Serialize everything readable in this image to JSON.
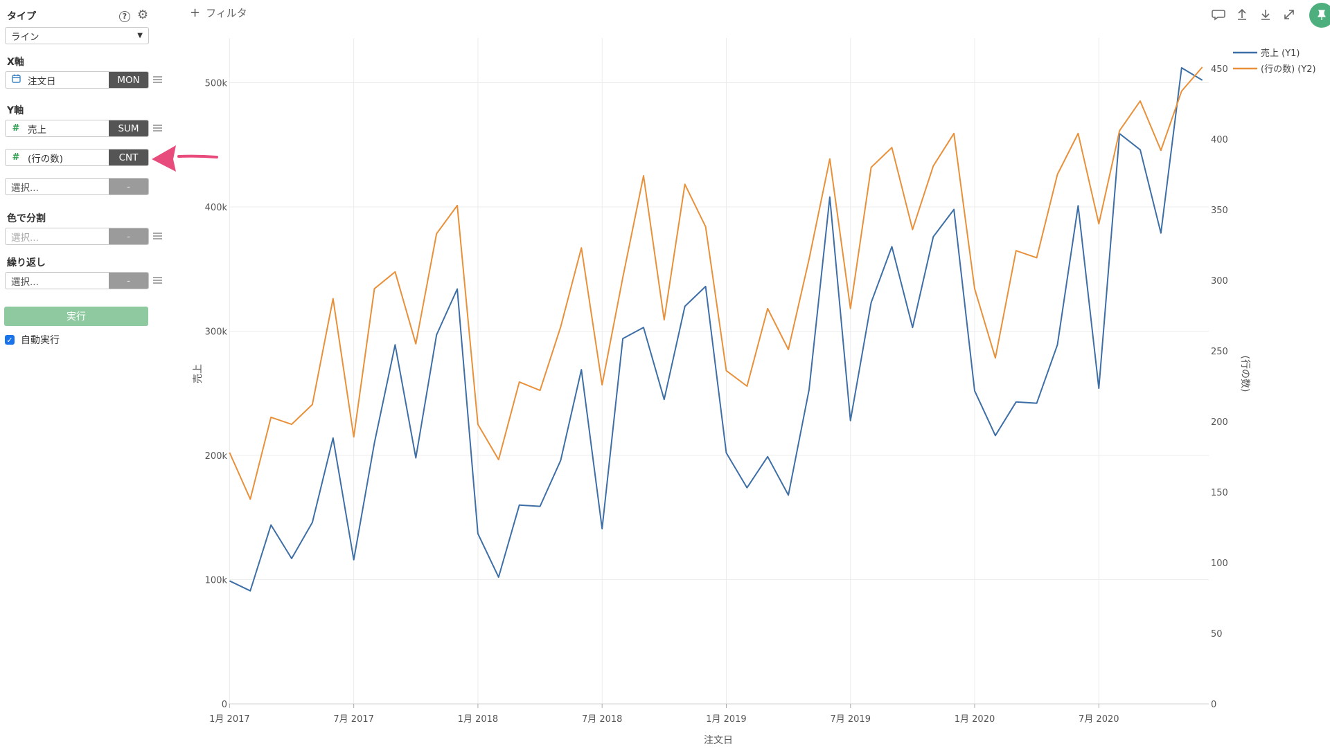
{
  "sidebar": {
    "type_label": "タイプ",
    "type_value": "ライン",
    "x_axis_label": "X軸",
    "x_field": {
      "name": "注文日",
      "agg": "MON",
      "icon": "calendar-icon"
    },
    "y_axis_label": "Y軸",
    "y_fields": [
      {
        "name": "売上",
        "agg": "SUM",
        "icon": "hash-icon"
      },
      {
        "name": "(行の数)",
        "agg": "CNT",
        "icon": "hash-icon"
      }
    ],
    "y_add_placeholder": "選択...",
    "y_add_agg": "-",
    "color_label": "色で分割",
    "color_placeholder": "選択...",
    "color_agg": "-",
    "repeat_label": "繰り返し",
    "repeat_placeholder": "選択...",
    "repeat_agg": "-",
    "run_button": "実行",
    "autorun_label": "自動実行",
    "autorun_checked": true
  },
  "topbar": {
    "filter_label": "フィルタ",
    "icons": [
      "comment-icon",
      "upload-icon",
      "download-icon",
      "expand-icon",
      "pin-icon"
    ]
  },
  "colors": {
    "series1": "#3d6fa6",
    "series2": "#e8903a",
    "annotation_arrow": "#e84c7d",
    "accent_green": "#4caf7d"
  },
  "chart_data": {
    "type": "line",
    "xlabel": "注文日",
    "ylabel_left": "売上",
    "ylabel_right": "(行の数)",
    "x_tick_labels": [
      "1月 2017",
      "7月 2017",
      "1月 2018",
      "7月 2018",
      "1月 2019",
      "7月 2019",
      "1月 2020",
      "7月 2020"
    ],
    "y_left_ticks": [
      "0",
      "100k",
      "200k",
      "300k",
      "400k",
      "500k"
    ],
    "y_right_ticks": [
      "0",
      "50",
      "100",
      "150",
      "200",
      "250",
      "300",
      "350",
      "400",
      "450"
    ],
    "ylim_left": [
      0,
      500000
    ],
    "ylim_right": [
      0,
      450
    ],
    "legend_position": "top-right",
    "legend": [
      "売上 (Y1)",
      "(行の数) (Y2)"
    ],
    "grid": true,
    "x_start": "2017-01",
    "x_end": "2020-12",
    "series": [
      {
        "name": "売上 (Y1)",
        "axis": "left",
        "values": [
          99000,
          91000,
          144000,
          117000,
          146000,
          214000,
          116000,
          210000,
          289000,
          198000,
          297000,
          334000,
          137000,
          102000,
          160000,
          159000,
          196000,
          269000,
          141000,
          294000,
          303000,
          245000,
          320000,
          336000,
          202000,
          174000,
          199000,
          168000,
          253000,
          408000,
          228000,
          323000,
          368000,
          303000,
          376000,
          398000,
          252000,
          216000,
          243000,
          242000,
          289000,
          401000,
          254000,
          459000,
          446000,
          379000,
          512000,
          502000
        ]
      },
      {
        "name": "(行の数) (Y2)",
        "axis": "right",
        "values": [
          178,
          145,
          203,
          198,
          212,
          287,
          189,
          294,
          306,
          255,
          333,
          353,
          198,
          173,
          228,
          222,
          267,
          323,
          226,
          302,
          374,
          272,
          368,
          338,
          236,
          225,
          280,
          251,
          315,
          386,
          280,
          380,
          394,
          336,
          381,
          404,
          294,
          245,
          321,
          316,
          375,
          404,
          340,
          406,
          427,
          392,
          434,
          451
        ]
      }
    ]
  }
}
